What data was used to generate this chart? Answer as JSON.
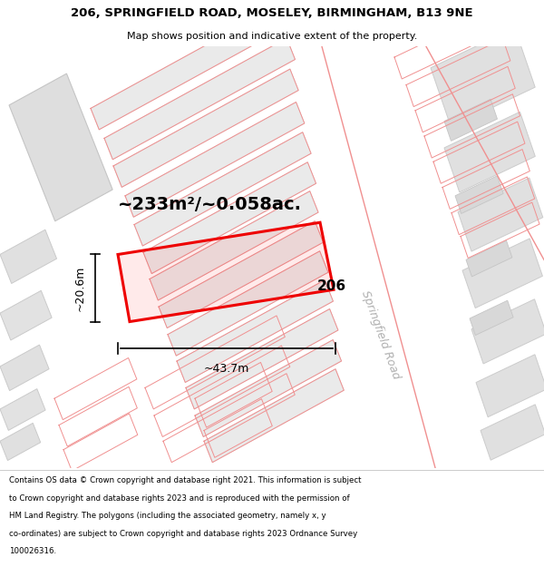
{
  "title_line1": "206, SPRINGFIELD ROAD, MOSELEY, BIRMINGHAM, B13 9NE",
  "title_line2": "Map shows position and indicative extent of the property.",
  "footer_lines": [
    "Contains OS data © Crown copyright and database right 2021. This information is subject",
    "to Crown copyright and database rights 2023 and is reproduced with the permission of",
    "HM Land Registry. The polygons (including the associated geometry, namely x, y",
    "co-ordinates) are subject to Crown copyright and database rights 2023 Ordnance Survey",
    "100026316."
  ],
  "area_label": "~233m²/~0.058ac.",
  "number_label": "206",
  "width_label": "~43.7m",
  "height_label": "~20.6m",
  "road_label": "Springfield Road",
  "map_bg": "#f5f5f5",
  "highlight_red": "#ee0000",
  "building_fill": "#e2e2e2",
  "building_edge": "#cccccc",
  "plot_fill": "#ebebeb",
  "plot_edge": "#f08080",
  "road_white": "#ffffff",
  "title_fontsize": 9.5,
  "subtitle_fontsize": 8.0,
  "area_fontsize": 14,
  "label_fontsize": 11,
  "annot_fontsize": 9,
  "footer_fontsize": 6.2,
  "road_label_color": "#b0b0b0",
  "road_label_fontsize": 9,
  "ang_deg": -25
}
